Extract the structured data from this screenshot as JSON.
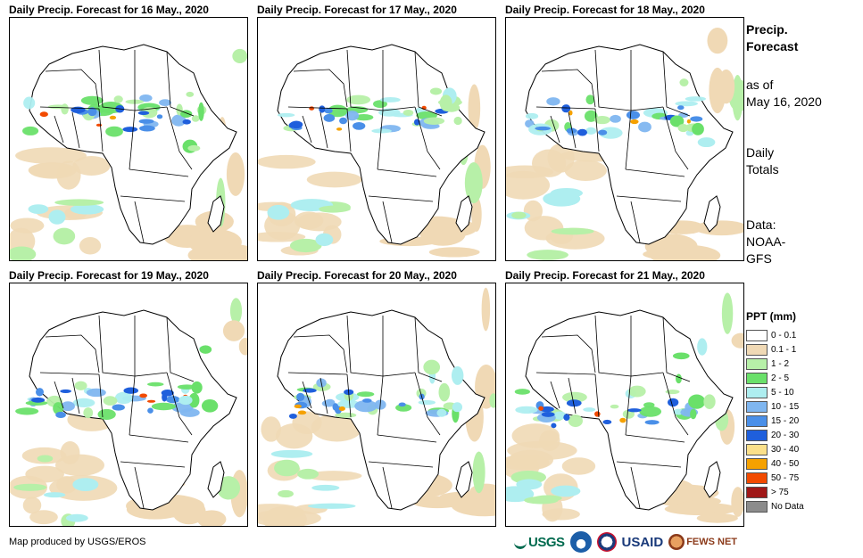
{
  "panels": [
    {
      "title": "Daily Precip. Forecast for 16 May., 2020",
      "variant": 0
    },
    {
      "title": "Daily Precip. Forecast for 17 May., 2020",
      "variant": 1
    },
    {
      "title": "Daily Precip. Forecast for 18 May., 2020",
      "variant": 2
    },
    {
      "title": "Daily Precip. Forecast for 19 May., 2020",
      "variant": 3
    },
    {
      "title": "Daily Precip. Forecast for 20 May., 2020",
      "variant": 4
    },
    {
      "title": "Daily Precip. Forecast for 21 May., 2020",
      "variant": 5
    }
  ],
  "side": {
    "title_line1": "Precip.",
    "title_line2": "Forecast",
    "asof_line1": "as of",
    "asof_line2": "May 16, 2020",
    "totals_line1": "Daily",
    "totals_line2": "Totals",
    "data_line1": "Data:",
    "data_line2": "NOAA-",
    "data_line3": "GFS"
  },
  "legend": {
    "title": "PPT (mm)",
    "items": [
      {
        "label": "0 - 0.1",
        "color": "#ffffff"
      },
      {
        "label": "0.1 - 1",
        "color": "#f0d9b5"
      },
      {
        "label": "1 - 2",
        "color": "#b7f0a8"
      },
      {
        "label": "2 - 5",
        "color": "#6ae06a"
      },
      {
        "label": "5 - 10",
        "color": "#aeeef0"
      },
      {
        "label": "10 - 15",
        "color": "#7fb6f0"
      },
      {
        "label": "15 - 20",
        "color": "#4a8fe8"
      },
      {
        "label": "20 - 30",
        "color": "#1f5fdc"
      },
      {
        "label": "30 - 40",
        "color": "#fbe08a"
      },
      {
        "label": "40 - 50",
        "color": "#f5a100"
      },
      {
        "label": "50 - 75",
        "color": "#f24a00"
      },
      {
        "label": "> 75",
        "color": "#a01818"
      },
      {
        "label": "No Data",
        "color": "#8c8c8c"
      }
    ]
  },
  "footer": {
    "credit": "Map produced by USGS/EROS"
  },
  "logos": {
    "usgs": "USGS",
    "usaid": "USAID",
    "fews": "FEWS NET"
  }
}
